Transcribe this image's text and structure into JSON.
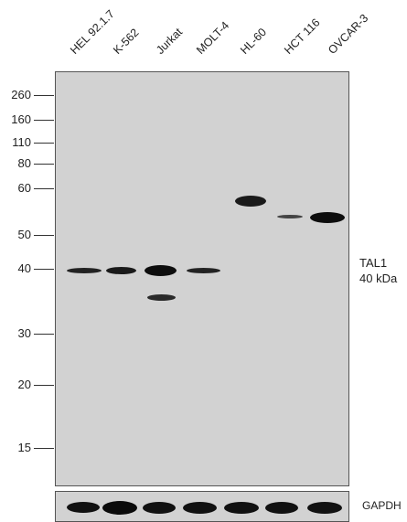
{
  "lanes": [
    "HEL 92.1.7",
    "K-562",
    "Jurkat",
    "MOLT-4",
    "HL-60",
    "HCT 116",
    "OVCAR-3"
  ],
  "markers": [
    "260",
    "160",
    "110",
    "80",
    "60",
    "50",
    "40",
    "30",
    "20",
    "15"
  ],
  "target": {
    "name": "TAL1",
    "size": "40 kDa"
  },
  "loading_control": "GAPDH"
}
